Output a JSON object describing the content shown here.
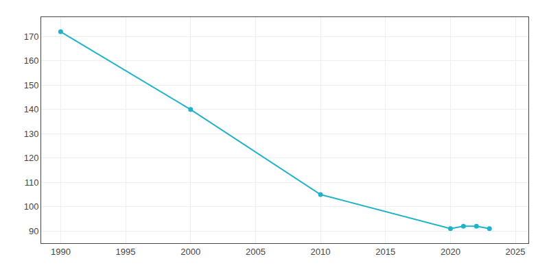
{
  "chart_data": {
    "type": "line",
    "x": [
      1990,
      2000,
      2010,
      2020,
      2021,
      2022,
      2023
    ],
    "values": [
      172,
      140,
      105,
      91,
      92,
      92,
      91
    ],
    "color": "#20b2c8",
    "marker": "circle",
    "xlim": [
      1988.5,
      2026
    ],
    "ylim": [
      85,
      178
    ],
    "xticks": [
      1990,
      1995,
      2000,
      2005,
      2010,
      2015,
      2020,
      2025
    ],
    "yticks": [
      90,
      100,
      110,
      120,
      130,
      140,
      150,
      160,
      170
    ],
    "grid": true
  }
}
